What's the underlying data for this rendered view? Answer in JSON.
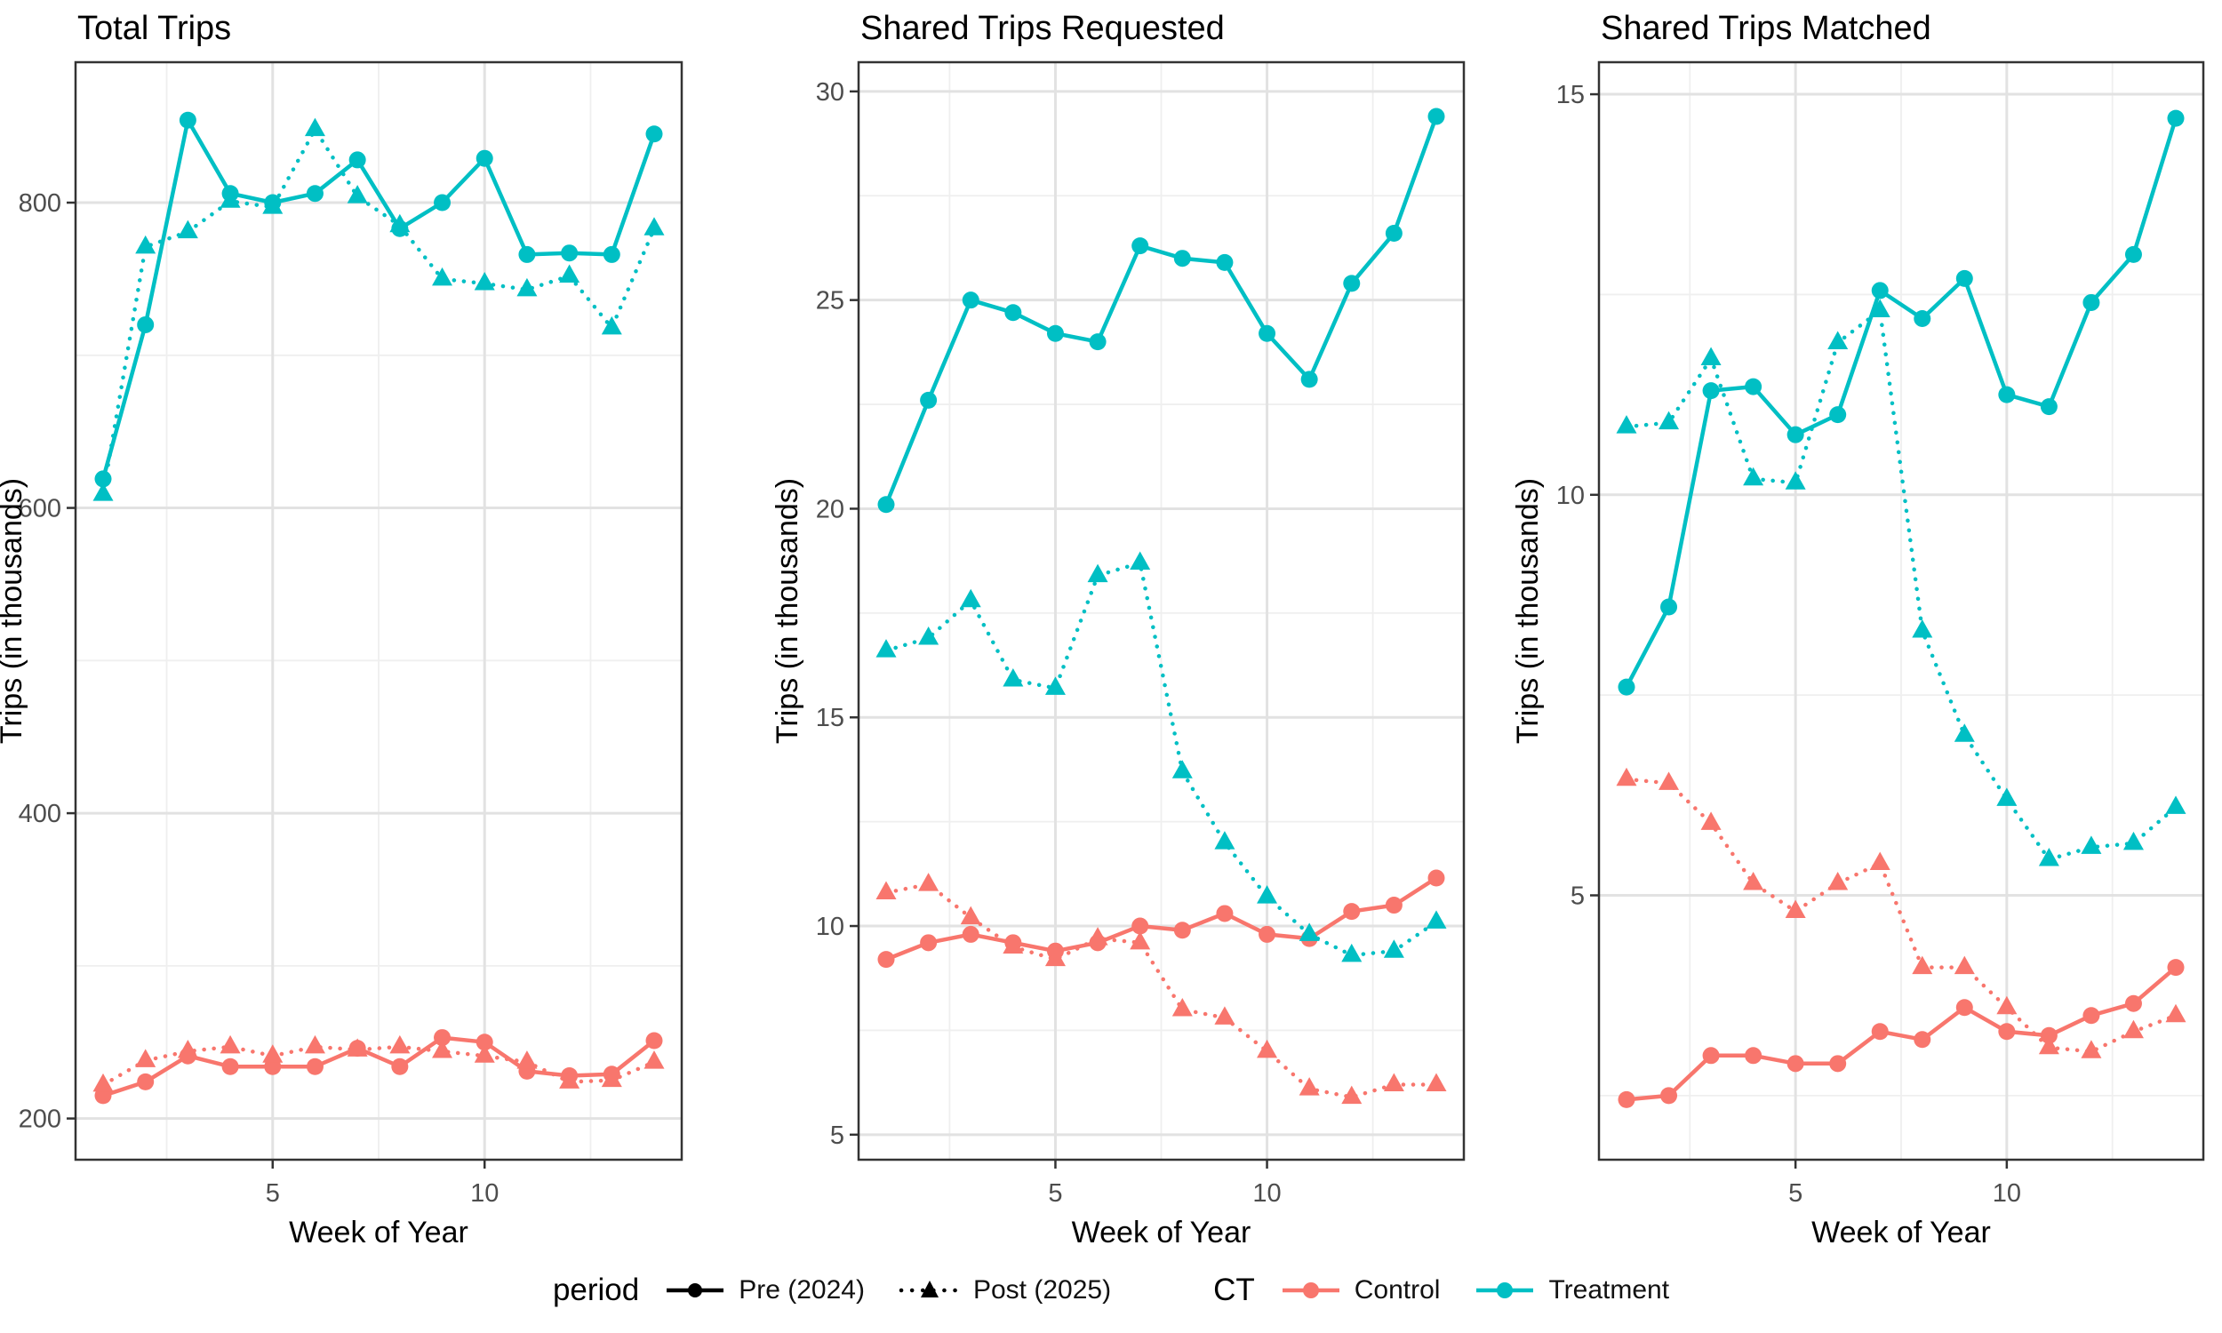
{
  "colors": {
    "control": "#F8766D",
    "treatment": "#00BFC4",
    "period": "#000000",
    "grid_major": "#E2E2E2",
    "grid_minor": "#EFEFEF",
    "axis_text": "#4D4D4D",
    "axis_title": "#000000",
    "panel_border": "#333333",
    "panel_background": "#FFFFFF"
  },
  "legend": {
    "position": "bottom",
    "period_title": "period",
    "pre_label": "Pre (2024)",
    "post_label": "Post (2025)",
    "ct_title": "CT",
    "control_label": "Control",
    "treatment_label": "Treatment"
  },
  "chart_data": [
    {
      "type": "line",
      "title": "Total Trips",
      "xlabel": "Week of Year",
      "ylabel": "Trips (in thousands)",
      "x": [
        1,
        2,
        3,
        4,
        5,
        6,
        7,
        8,
        9,
        10,
        11,
        12,
        13,
        14
      ],
      "xlim": [
        1,
        14
      ],
      "xticks": [
        5,
        10
      ],
      "xminor": [
        2.5,
        7.5,
        12.5
      ],
      "yticks": [
        200,
        400,
        600,
        800
      ],
      "yminor": [
        300,
        500,
        700
      ],
      "ylim": [
        173,
        892
      ],
      "grid": true,
      "series": [
        {
          "name": "Pre (2024) Control",
          "period": "pre",
          "group": "control",
          "marker": "circle",
          "linestyle": "solid",
          "values": [
            215,
            224,
            241,
            234,
            234,
            234,
            246,
            234,
            253,
            250,
            231,
            228,
            229,
            251
          ]
        },
        {
          "name": "Post (2025) Control",
          "period": "post",
          "group": "control",
          "marker": "triangle",
          "linestyle": "dotted",
          "values": [
            222,
            238,
            244,
            247,
            241,
            247,
            245,
            247,
            244,
            241,
            237,
            224,
            225,
            237
          ]
        },
        {
          "name": "Pre (2024) Treatment",
          "period": "pre",
          "group": "treatment",
          "marker": "circle",
          "linestyle": "solid",
          "values": [
            619,
            720,
            854,
            806,
            800,
            806,
            828,
            783,
            800,
            829,
            766,
            767,
            766,
            845
          ]
        },
        {
          "name": "Post (2025) Treatment",
          "period": "post",
          "group": "treatment",
          "marker": "triangle",
          "linestyle": "dotted",
          "values": [
            609,
            771,
            781,
            801,
            797,
            848,
            804,
            785,
            750,
            747,
            743,
            752,
            718,
            783
          ]
        }
      ]
    },
    {
      "type": "line",
      "title": "Shared Trips Requested",
      "xlabel": "Week of Year",
      "ylabel": "Trips (in thousands)",
      "x": [
        1,
        2,
        3,
        4,
        5,
        6,
        7,
        8,
        9,
        10,
        11,
        12,
        13,
        14
      ],
      "xlim": [
        1,
        14
      ],
      "xticks": [
        5,
        10
      ],
      "xminor": [
        2.5,
        7.5,
        12.5
      ],
      "yticks": [
        5,
        10,
        15,
        20,
        25,
        30
      ],
      "yminor": [
        7.5,
        12.5,
        17.5,
        22.5,
        27.5
      ],
      "ylim": [
        4.4,
        30.7
      ],
      "grid": true,
      "series": [
        {
          "name": "Pre (2024) Control",
          "period": "pre",
          "group": "control",
          "marker": "circle",
          "linestyle": "solid",
          "values": [
            9.2,
            9.6,
            9.8,
            9.6,
            9.4,
            9.6,
            10.0,
            9.9,
            10.3,
            9.8,
            9.7,
            10.35,
            10.5,
            11.15
          ]
        },
        {
          "name": "Post (2025) Control",
          "period": "post",
          "group": "control",
          "marker": "triangle",
          "linestyle": "dotted",
          "values": [
            10.8,
            11.0,
            10.2,
            9.5,
            9.2,
            9.7,
            9.6,
            8.0,
            7.8,
            7.0,
            6.1,
            5.9,
            6.2,
            6.2
          ]
        },
        {
          "name": "Pre (2024) Treatment",
          "period": "pre",
          "group": "treatment",
          "marker": "circle",
          "linestyle": "solid",
          "values": [
            20.1,
            22.6,
            25.0,
            24.7,
            24.2,
            24.0,
            26.3,
            26.0,
            25.9,
            24.2,
            23.1,
            25.4,
            26.6,
            29.4
          ]
        },
        {
          "name": "Post (2025) Treatment",
          "period": "post",
          "group": "treatment",
          "marker": "triangle",
          "linestyle": "dotted",
          "values": [
            16.6,
            16.9,
            17.8,
            15.9,
            15.7,
            18.4,
            18.7,
            13.7,
            12.0,
            10.7,
            9.8,
            9.3,
            9.4,
            10.1
          ]
        }
      ]
    },
    {
      "type": "line",
      "title": "Shared Trips Matched",
      "xlabel": "Week of Year",
      "ylabel": "Trips (in thousands)",
      "x": [
        1,
        2,
        3,
        4,
        5,
        6,
        7,
        8,
        9,
        10,
        11,
        12,
        13,
        14
      ],
      "xlim": [
        1,
        14
      ],
      "xticks": [
        5,
        10
      ],
      "xminor": [
        2.5,
        7.5,
        12.5
      ],
      "yticks": [
        5,
        10,
        15
      ],
      "yminor": [
        2.5,
        7.5,
        12.5
      ],
      "ylim": [
        1.7,
        15.4
      ],
      "grid": true,
      "series": [
        {
          "name": "Pre (2024) Control",
          "period": "pre",
          "group": "control",
          "marker": "circle",
          "linestyle": "solid",
          "values": [
            2.45,
            2.5,
            3.0,
            3.0,
            2.9,
            2.9,
            3.3,
            3.2,
            3.6,
            3.3,
            3.25,
            3.5,
            3.65,
            4.1
          ]
        },
        {
          "name": "Post (2025) Control",
          "period": "post",
          "group": "control",
          "marker": "triangle",
          "linestyle": "dotted",
          "values": [
            6.45,
            6.4,
            5.9,
            5.15,
            4.8,
            5.15,
            5.4,
            4.1,
            4.1,
            3.6,
            3.1,
            3.05,
            3.3,
            3.5
          ]
        },
        {
          "name": "Pre (2024) Treatment",
          "period": "pre",
          "group": "treatment",
          "marker": "circle",
          "linestyle": "solid",
          "values": [
            7.6,
            8.6,
            11.3,
            11.35,
            10.75,
            11.0,
            12.55,
            12.2,
            12.7,
            11.25,
            11.1,
            12.4,
            13.0,
            14.7
          ]
        },
        {
          "name": "Post (2025) Treatment",
          "period": "post",
          "group": "treatment",
          "marker": "triangle",
          "linestyle": "dotted",
          "values": [
            10.85,
            10.9,
            11.7,
            10.2,
            10.15,
            11.9,
            12.3,
            8.3,
            7.0,
            6.2,
            5.45,
            5.6,
            5.65,
            6.1
          ]
        }
      ]
    }
  ]
}
